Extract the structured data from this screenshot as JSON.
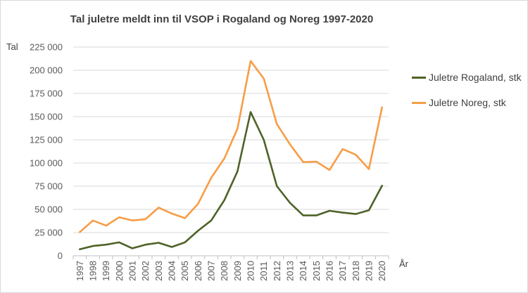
{
  "chart_data": {
    "type": "line",
    "title": "Tal juletre meldt inn til VSOP i Rogaland og Noreg 1997-2020",
    "ylabel": "Tal",
    "xlabel": "År",
    "ylim": [
      0,
      225000
    ],
    "yticks": [
      0,
      25000,
      50000,
      75000,
      100000,
      125000,
      150000,
      175000,
      200000,
      225000
    ],
    "ytick_labels": [
      "0",
      "25 000",
      "50 000",
      "75 000",
      "100 000",
      "125 000",
      "150 000",
      "175 000",
      "200 000",
      "225 000"
    ],
    "categories": [
      "1997",
      "1998",
      "1999",
      "2000",
      "2001",
      "2002",
      "2003",
      "2004",
      "2005",
      "2006",
      "2007",
      "2008",
      "2009",
      "2010",
      "2011",
      "2012",
      "2013",
      "2014",
      "2015",
      "2016",
      "2017",
      "2018",
      "2019",
      "2020"
    ],
    "grid": true,
    "legend_position": "right",
    "series": [
      {
        "name": "Juletre Rogaland, stk",
        "color": "#4e6228",
        "values": [
          7000,
          10500,
          12000,
          14500,
          8000,
          12000,
          14000,
          9500,
          14500,
          27000,
          38000,
          60000,
          91000,
          155000,
          125000,
          75000,
          57000,
          43500,
          43500,
          48500,
          46500,
          45000,
          49000,
          75500
        ]
      },
      {
        "name": "Juletre Noreg, stk",
        "color": "#f79d46",
        "values": [
          25500,
          38000,
          32500,
          41500,
          38000,
          39500,
          52000,
          45500,
          40500,
          56000,
          84000,
          105000,
          137000,
          210000,
          191000,
          142000,
          120000,
          101000,
          101500,
          92500,
          115000,
          109000,
          93500,
          160000
        ]
      }
    ]
  }
}
